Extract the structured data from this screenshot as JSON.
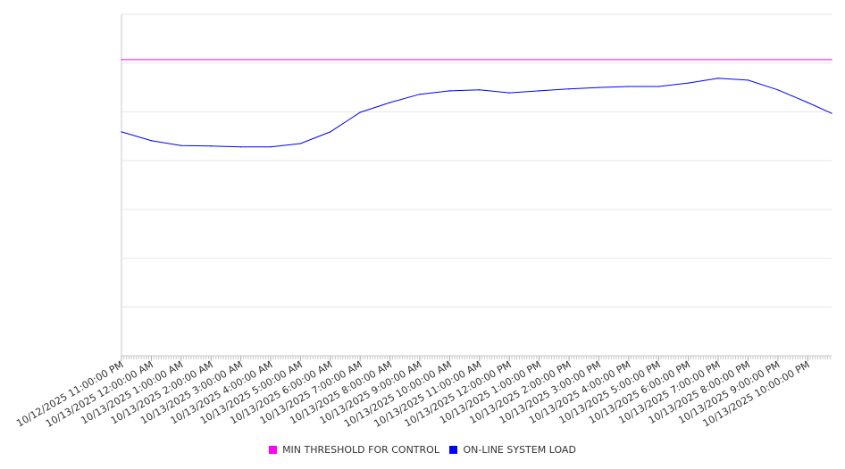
{
  "chart_data": {
    "type": "line",
    "title": "",
    "xlabel": "",
    "ylabel": "",
    "grid": true,
    "y_tick_labels_shown": false,
    "ylim": [
      0,
      7
    ],
    "x_tick_labels": [
      "10/12/2025 11:00:00 PM",
      "10/13/2025 12:00:00 AM",
      "10/13/2025 1:00:00 AM",
      "10/13/2025 2:00:00 AM",
      "10/13/2025 3:00:00 AM",
      "10/13/2025 4:00:00 AM",
      "10/13/2025 5:00:00 AM",
      "10/13/2025 6:00:00 AM",
      "10/13/2025 7:00:00 AM",
      "10/13/2025 8:00:00 AM",
      "10/13/2025 9:00:00 AM",
      "10/13/2025 10:00:00 AM",
      "10/13/2025 11:00:00 AM",
      "10/13/2025 12:00:00 PM",
      "10/13/2025 1:00:00 PM",
      "10/13/2025 2:00:00 PM",
      "10/13/2025 3:00:00 PM",
      "10/13/2025 4:00:00 PM",
      "10/13/2025 5:00:00 PM",
      "10/13/2025 6:00:00 PM",
      "10/13/2025 7:00:00 PM",
      "10/13/2025 8:00:00 PM",
      "10/13/2025 9:00:00 PM",
      "10/13/2025 10:00:00 PM"
    ],
    "x_hours_range": [
      0,
      23.8
    ],
    "legend_position": "bottom",
    "series": [
      {
        "name": "MIN THRESHOLD FOR CONTROL",
        "color": "#ff00ff",
        "x": [
          0,
          23.8
        ],
        "values": [
          6.07,
          6.07
        ]
      },
      {
        "name": "ON-LINE SYSTEM LOAD",
        "color": "#0000ff",
        "x": [
          0,
          1,
          2,
          3,
          4,
          5,
          6,
          7,
          8,
          9,
          10,
          11,
          12,
          13,
          14,
          15,
          16,
          17,
          18,
          19,
          20,
          21,
          22,
          23,
          23.8
        ],
        "values": [
          4.59,
          4.41,
          4.31,
          4.3,
          4.28,
          4.28,
          4.35,
          4.59,
          4.99,
          5.19,
          5.36,
          5.43,
          5.45,
          5.39,
          5.43,
          5.47,
          5.5,
          5.52,
          5.52,
          5.59,
          5.69,
          5.65,
          5.45,
          5.19,
          4.97
        ]
      }
    ]
  }
}
